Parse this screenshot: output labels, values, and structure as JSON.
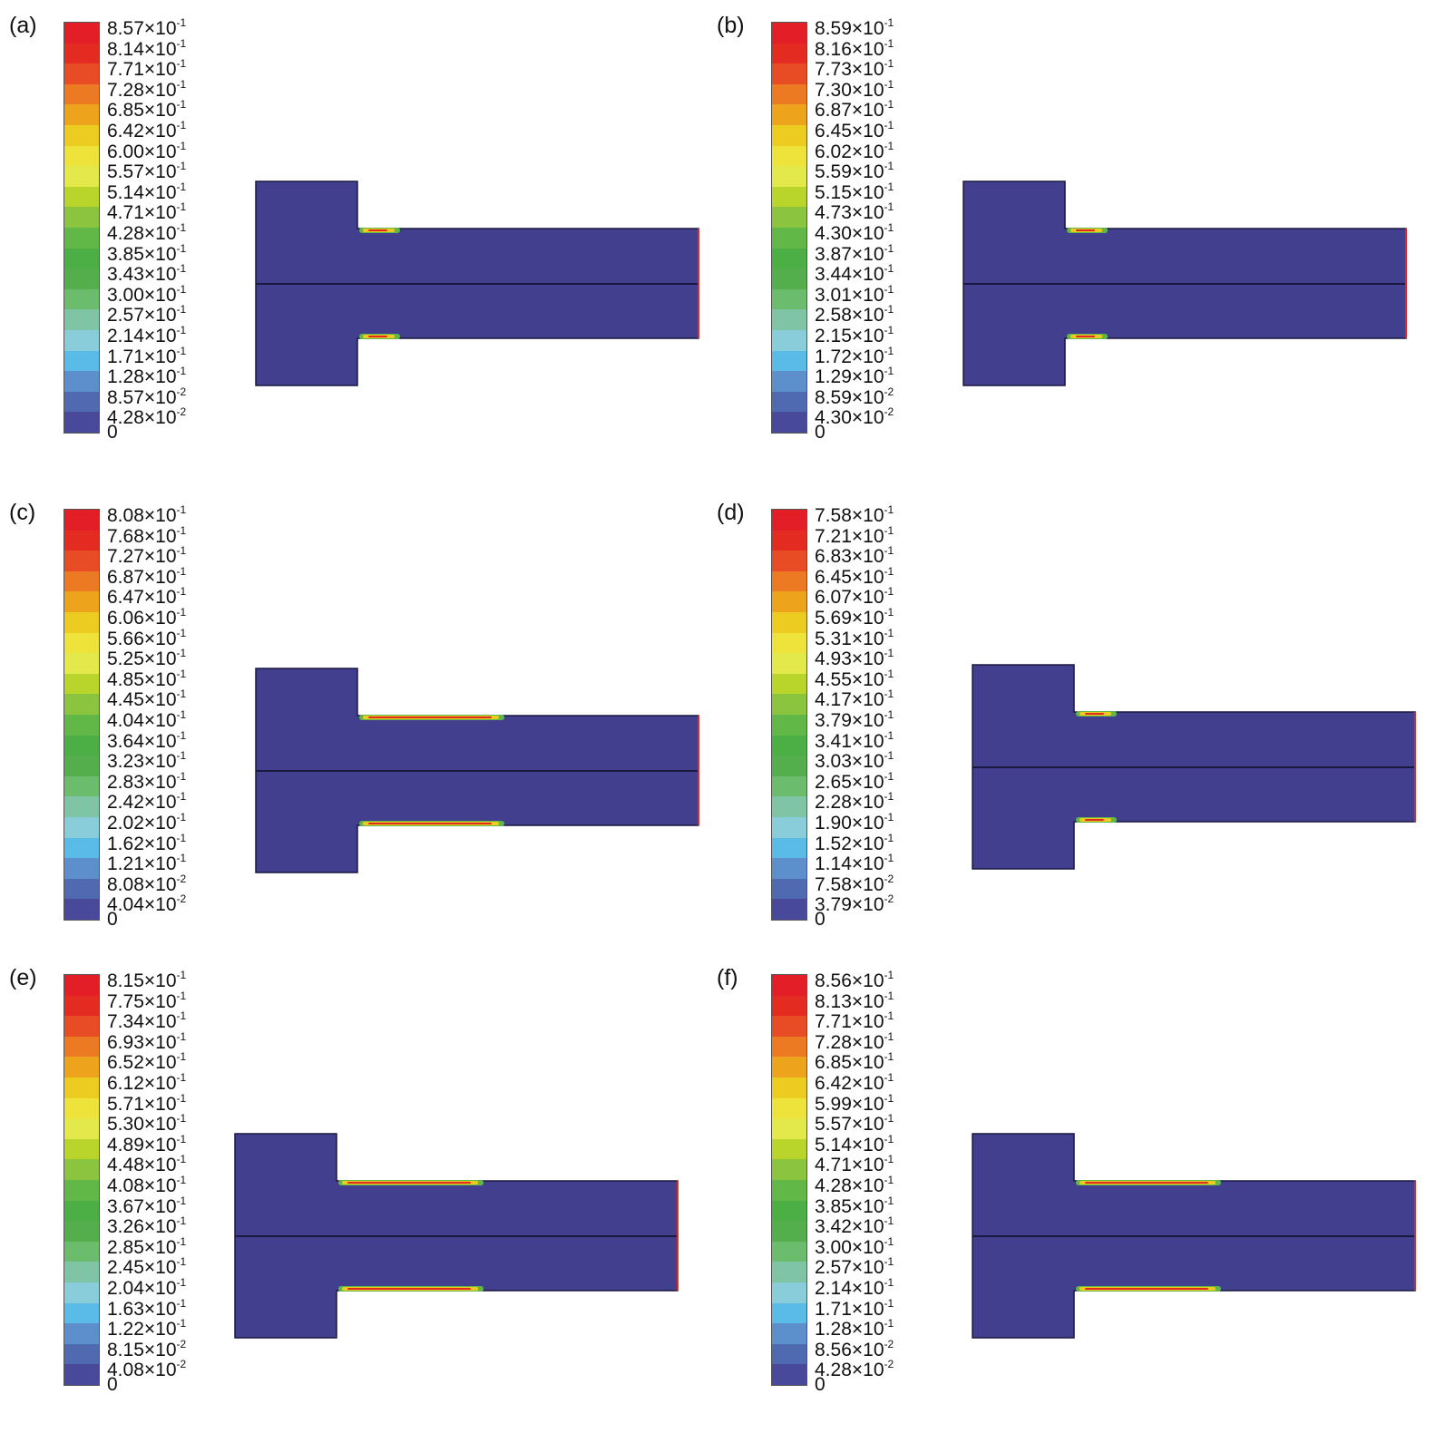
{
  "colors": {
    "body": "#423F8F",
    "outline": "#1A1840",
    "edge": "#E02B20",
    "scale": [
      "#E41E26",
      "#E42B22",
      "#E84C24",
      "#EC7A22",
      "#EDA31C",
      "#EDCC22",
      "#EDE33A",
      "#E3E84B",
      "#B9D52C",
      "#8BC53F",
      "#61B846",
      "#4BAF45",
      "#54AE4C",
      "#6CBC6E",
      "#80C4A6",
      "#89CDDA",
      "#5ABCE6",
      "#5E8FCD",
      "#4F6AB1",
      "#48499A",
      "#44428F"
    ]
  },
  "panels": [
    {
      "label": "(a)",
      "ticks": [
        "8.57×10-1",
        "8.14×10-1",
        "7.71×10-1",
        "7.28×10-1",
        "6.85×10-1",
        "6.42×10-1",
        "6.00×10-1",
        "5.57×10-1",
        "5.14×10-1",
        "4.71×10-1",
        "4.28×10-1",
        "3.85×10-1",
        "3.43×10-1",
        "3.00×10-1",
        "2.57×10-1",
        "2.14×10-1",
        "1.71×10-1",
        "1.28×10-1",
        "8.57×10-2",
        "4.28×10-2",
        "0"
      ]
    },
    {
      "label": "(b)",
      "ticks": [
        "8.59×10-1",
        "8.16×10-1",
        "7.73×10-1",
        "7.30×10-1",
        "6.87×10-1",
        "6.45×10-1",
        "6.02×10-1",
        "5.59×10-1",
        "5.15×10-1",
        "4.73×10-1",
        "4.30×10-1",
        "3.87×10-1",
        "3.44×10-1",
        "3.01×10-1",
        "2.58×10-1",
        "2.15×10-1",
        "1.72×10-1",
        "1.29×10-1",
        "8.59×10-2",
        "4.30×10-2",
        "0"
      ]
    },
    {
      "label": "(c)",
      "ticks": [
        "8.08×10-1",
        "7.68×10-1",
        "7.27×10-1",
        "6.87×10-1",
        "6.47×10-1",
        "6.06×10-1",
        "5.66×10-1",
        "5.25×10-1",
        "4.85×10-1",
        "4.45×10-1",
        "4.04×10-1",
        "3.64×10-1",
        "3.23×10-1",
        "2.83×10-1",
        "2.42×10-1",
        "2.02×10-1",
        "1.62×10-1",
        "1.21×10-1",
        "8.08×10-2",
        "4.04×10-2",
        "0"
      ]
    },
    {
      "label": "(d)",
      "ticks": [
        "7.58×10-1",
        "7.21×10-1",
        "6.83×10-1",
        "6.45×10-1",
        "6.07×10-1",
        "5.69×10-1",
        "5.31×10-1",
        "4.93×10-1",
        "4.55×10-1",
        "4.17×10-1",
        "3.79×10-1",
        "3.41×10-1",
        "3.03×10-1",
        "2.65×10-1",
        "2.28×10-1",
        "1.90×10-1",
        "1.52×10-1",
        "1.14×10-1",
        "7.58×10-2",
        "3.79×10-2",
        "0"
      ]
    },
    {
      "label": "(e)",
      "ticks": [
        "8.15×10-1",
        "7.75×10-1",
        "7.34×10-1",
        "6.93×10-1",
        "6.52×10-1",
        "6.12×10-1",
        "5.71×10-1",
        "5.30×10-1",
        "4.89×10-1",
        "4.48×10-1",
        "4.08×10-1",
        "3.67×10-1",
        "3.26×10-1",
        "2.85×10-1",
        "2.45×10-1",
        "2.04×10-1",
        "1.63×10-1",
        "1.22×10-1",
        "8.15×10-2",
        "4.08×10-2",
        "0"
      ]
    },
    {
      "label": "(f)",
      "ticks": [
        "8.56×10-1",
        "8.13×10-1",
        "7.71×10-1",
        "7.28×10-1",
        "6.85×10-1",
        "6.42×10-1",
        "5.99×10-1",
        "5.57×10-1",
        "5.14×10-1",
        "4.71×10-1",
        "4.28×10-1",
        "3.85×10-1",
        "3.42×10-1",
        "3.00×10-1",
        "2.57×10-1",
        "2.14×10-1",
        "1.71×10-1",
        "1.28×10-1",
        "8.56×10-2",
        "4.28×10-2",
        "0"
      ]
    }
  ]
}
